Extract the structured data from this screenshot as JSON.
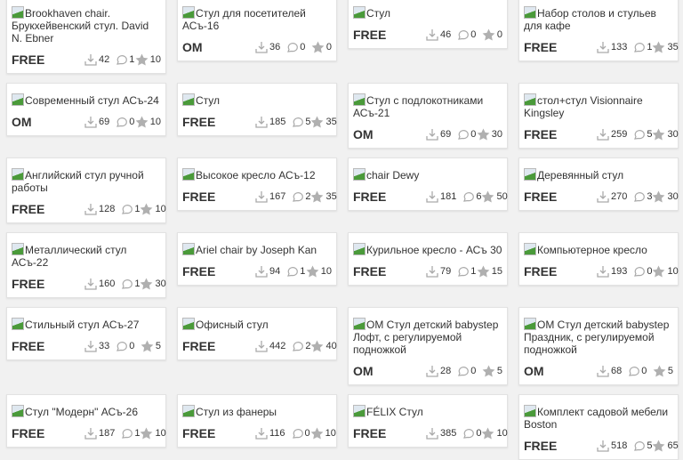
{
  "items": [
    {
      "title": "Brookhaven chair. Брукхейвенский стул. David N. Ebner",
      "price": "FREE",
      "downloads": "42",
      "comments": "1",
      "likes": "10"
    },
    {
      "title": "Стул для посетителей АСъ-16",
      "price": "OM",
      "downloads": "36",
      "comments": "0",
      "likes": "0"
    },
    {
      "title": "Стул",
      "price": "FREE",
      "downloads": "46",
      "comments": "0",
      "likes": "0"
    },
    {
      "title": "Набор столов и стульев для кафе",
      "price": "FREE",
      "downloads": "133",
      "comments": "1",
      "likes": "35"
    },
    {
      "title": "Современный стул АСъ-24",
      "price": "OM",
      "downloads": "69",
      "comments": "0",
      "likes": "10"
    },
    {
      "title": "Стул",
      "price": "FREE",
      "downloads": "185",
      "comments": "5",
      "likes": "35"
    },
    {
      "title": "Стул с подлокотниками АСъ-21",
      "price": "OM",
      "downloads": "69",
      "comments": "0",
      "likes": "30"
    },
    {
      "title": "стол+стул Visionnaire Kingsley",
      "price": "FREE",
      "downloads": "259",
      "comments": "5",
      "likes": "30"
    },
    {
      "title": "Английский стул ручной работы",
      "price": "FREE",
      "downloads": "128",
      "comments": "1",
      "likes": "10"
    },
    {
      "title": "Высокое кресло АСъ-12",
      "price": "FREE",
      "downloads": "167",
      "comments": "2",
      "likes": "35"
    },
    {
      "title": "chair Dewy",
      "price": "FREE",
      "downloads": "181",
      "comments": "6",
      "likes": "50"
    },
    {
      "title": "Деревянный стул",
      "price": "FREE",
      "downloads": "270",
      "comments": "3",
      "likes": "30"
    },
    {
      "title": "Металлический стул АСъ-22",
      "price": "FREE",
      "downloads": "160",
      "comments": "1",
      "likes": "30"
    },
    {
      "title": "Ariel chair by Joseph Kan",
      "price": "FREE",
      "downloads": "94",
      "comments": "1",
      "likes": "10"
    },
    {
      "title": "Курильное кресло - АСъ 30",
      "price": "FREE",
      "downloads": "79",
      "comments": "1",
      "likes": "15"
    },
    {
      "title": "Компьютерное кресло",
      "price": "FREE",
      "downloads": "193",
      "comments": "0",
      "likes": "10"
    },
    {
      "title": "Стильный стул АСъ-27",
      "price": "FREE",
      "downloads": "33",
      "comments": "0",
      "likes": "5"
    },
    {
      "title": "Офисный стул",
      "price": "FREE",
      "downloads": "442",
      "comments": "2",
      "likes": "40"
    },
    {
      "title": "OM Стул детский babystep Лофт, с регулируемой подножкой",
      "price": "OM",
      "downloads": "28",
      "comments": "0",
      "likes": "5"
    },
    {
      "title": "OM Стул детский babystep Праздник, с регулируемой подножкой",
      "price": "OM",
      "downloads": "68",
      "comments": "0",
      "likes": "5"
    },
    {
      "title": "Стул \"Модерн\" АСъ-26",
      "price": "FREE",
      "downloads": "187",
      "comments": "1",
      "likes": "10"
    },
    {
      "title": "Стул из фанеры",
      "price": "FREE",
      "downloads": "116",
      "comments": "0",
      "likes": "10"
    },
    {
      "title": "FÉLIX Стул",
      "price": "FREE",
      "downloads": "385",
      "comments": "0",
      "likes": "10"
    },
    {
      "title": "Комплект садовой мебели Boston",
      "price": "FREE",
      "downloads": "518",
      "comments": "5",
      "likes": "65"
    }
  ],
  "icons": {
    "download": "download-icon",
    "comment": "comment-icon",
    "like": "star-icon",
    "thumb": "broken-image-icon"
  },
  "colors": {
    "background": "#f1f1f1",
    "card": "#ffffff",
    "icon": "#b0b0b0"
  }
}
